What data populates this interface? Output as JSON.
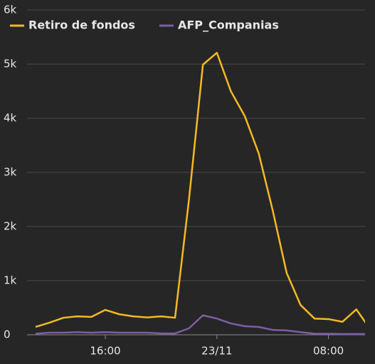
{
  "chart_data": {
    "type": "line",
    "categories": [
      null,
      null,
      null,
      null,
      null,
      "16:00",
      null,
      null,
      null,
      null,
      null,
      null,
      null,
      "23/11",
      null,
      null,
      null,
      null,
      null,
      null,
      null,
      "08:00",
      null,
      null,
      null
    ],
    "series": [
      {
        "name": "Retiro de fondos",
        "color": "#f5b921",
        "values": [
          145,
          225,
          315,
          340,
          330,
          460,
          380,
          340,
          320,
          340,
          315,
          2500,
          4990,
          5210,
          4500,
          4040,
          3350,
          2300,
          1145,
          550,
          300,
          290,
          240,
          470,
          100
        ]
      },
      {
        "name": "AFP_Companias",
        "color": "#7b5ea7",
        "values": [
          20,
          40,
          40,
          50,
          40,
          50,
          40,
          40,
          40,
          25,
          25,
          120,
          360,
          300,
          210,
          160,
          145,
          90,
          80,
          50,
          20,
          20,
          15,
          15,
          15
        ]
      }
    ],
    "ylim": [
      0,
      6000
    ],
    "yticks": [
      0,
      {
        "value": 1000,
        "label": "1k"
      },
      {
        "value": 2000,
        "label": "2k"
      },
      {
        "value": 3000,
        "label": "3k"
      },
      {
        "value": 4000,
        "label": "4k"
      },
      {
        "value": 5000,
        "label": "5k"
      },
      {
        "value": 6000,
        "label": "6k"
      }
    ],
    "grid": true,
    "legend": "top-left"
  }
}
